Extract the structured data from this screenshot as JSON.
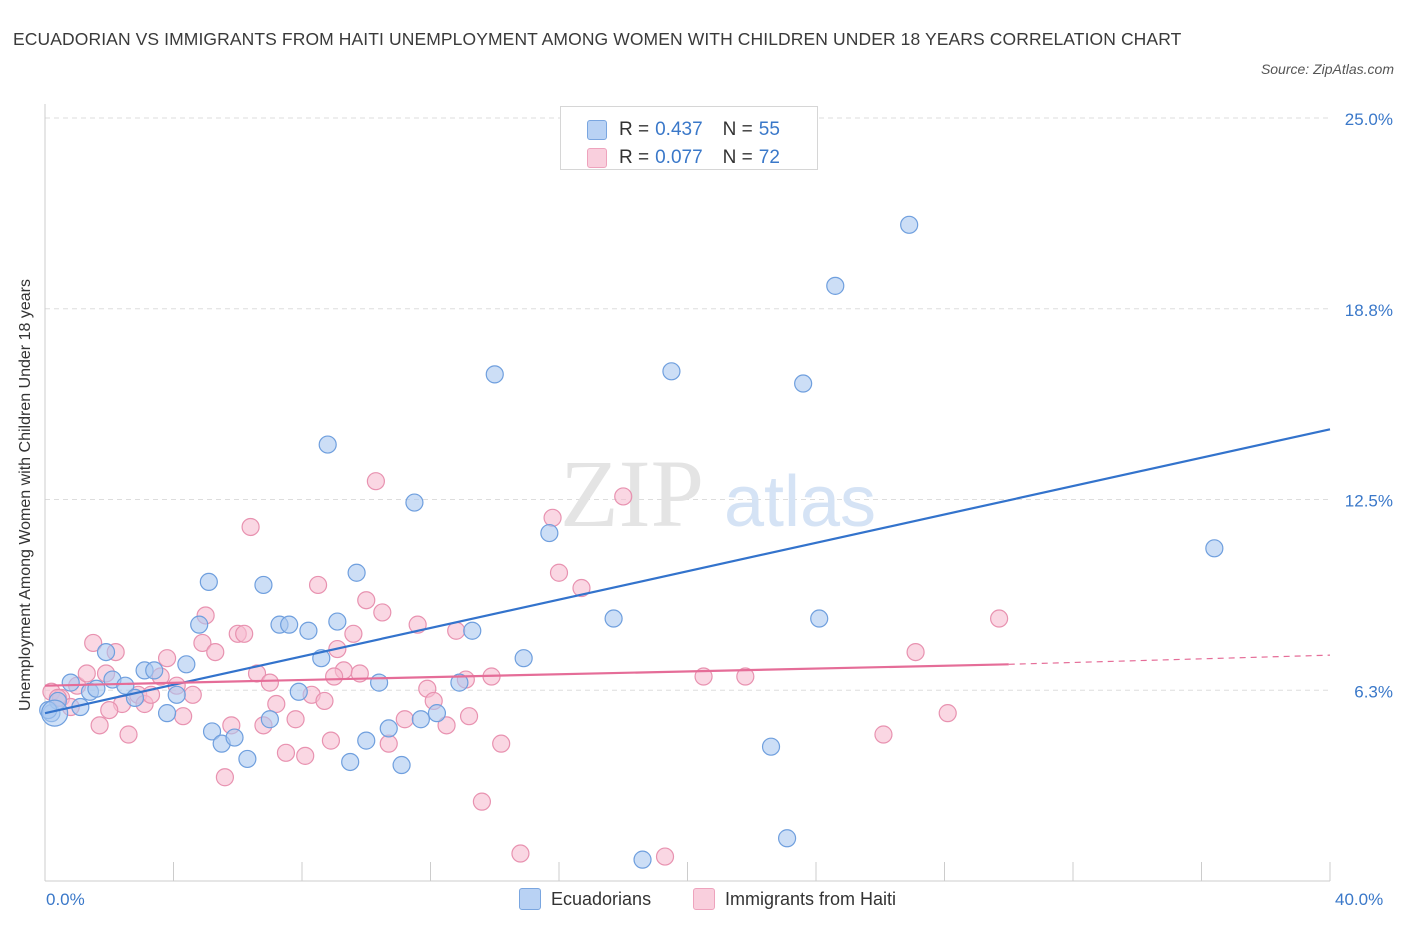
{
  "title": "ECUADORIAN VS IMMIGRANTS FROM HAITI UNEMPLOYMENT AMONG WOMEN WITH CHILDREN UNDER 18 YEARS CORRELATION CHART",
  "source": "Source: ZipAtlas.com",
  "watermark": {
    "zip": "ZIP",
    "atlas": "atlas"
  },
  "legend": {
    "rows": [
      {
        "r_label": "R =",
        "r_value": "0.437",
        "n_label": "N =",
        "n_value": "55"
      },
      {
        "r_label": "R =",
        "r_value": "0.077",
        "n_label": "N =",
        "n_value": "72"
      }
    ]
  },
  "colors": {
    "blue_fill": "#aac8f0",
    "blue_stroke": "#6f9fde",
    "blue_line": "#3373cc",
    "pink_fill": "#f6bcd0",
    "pink_stroke": "#e892b0",
    "pink_line": "#e56d98",
    "axis_label": "#3a78c9",
    "grid": "#dddddd"
  },
  "chart_data": {
    "type": "scatter",
    "title": "ECUADORIAN VS IMMIGRANTS FROM HAITI UNEMPLOYMENT AMONG WOMEN WITH CHILDREN UNDER 18 YEARS CORRELATION CHART",
    "xlabel": "",
    "ylabel": "Unemployment Among Women with Children Under 18 years",
    "xlim": [
      0,
      40
    ],
    "ylim": [
      0,
      25
    ],
    "x_tick_labels": [
      "0.0%",
      "40.0%"
    ],
    "y_tick_labels": [
      "6.3%",
      "12.5%",
      "18.8%",
      "25.0%"
    ],
    "y_ticks": [
      6.25,
      12.5,
      18.75,
      25.0
    ],
    "grid": true,
    "legend_position": "bottom",
    "series": [
      {
        "name": "Ecuadorians",
        "color": "#aac8f0",
        "trend": {
          "x": [
            0,
            40
          ],
          "y": [
            5.5,
            14.8
          ]
        },
        "points": [
          [
            0.2,
            5.5
          ],
          [
            0.4,
            5.9
          ],
          [
            0.8,
            6.5
          ],
          [
            1.1,
            5.7
          ],
          [
            1.4,
            6.2
          ],
          [
            1.6,
            6.3
          ],
          [
            1.9,
            7.5
          ],
          [
            2.1,
            6.6
          ],
          [
            2.5,
            6.4
          ],
          [
            2.8,
            6.0
          ],
          [
            3.1,
            6.9
          ],
          [
            3.4,
            6.9
          ],
          [
            3.8,
            5.5
          ],
          [
            4.1,
            6.1
          ],
          [
            4.4,
            7.1
          ],
          [
            4.8,
            8.4
          ],
          [
            5.1,
            9.8
          ],
          [
            5.2,
            4.9
          ],
          [
            5.5,
            4.5
          ],
          [
            5.9,
            4.7
          ],
          [
            6.3,
            4.0
          ],
          [
            6.8,
            9.7
          ],
          [
            7.0,
            5.3
          ],
          [
            7.3,
            8.4
          ],
          [
            7.6,
            8.4
          ],
          [
            7.9,
            6.2
          ],
          [
            8.2,
            8.2
          ],
          [
            8.6,
            7.3
          ],
          [
            8.8,
            14.3
          ],
          [
            9.1,
            8.5
          ],
          [
            9.5,
            3.9
          ],
          [
            9.7,
            10.1
          ],
          [
            10.0,
            4.6
          ],
          [
            10.4,
            6.5
          ],
          [
            10.7,
            5.0
          ],
          [
            11.1,
            3.8
          ],
          [
            11.5,
            12.4
          ],
          [
            11.7,
            5.3
          ],
          [
            12.2,
            5.5
          ],
          [
            12.9,
            6.5
          ],
          [
            13.3,
            8.2
          ],
          [
            14.0,
            16.6
          ],
          [
            14.9,
            7.3
          ],
          [
            15.7,
            11.4
          ],
          [
            17.7,
            8.6
          ],
          [
            18.6,
            0.7
          ],
          [
            19.5,
            16.7
          ],
          [
            22.6,
            4.4
          ],
          [
            23.1,
            1.4
          ],
          [
            23.6,
            16.3
          ],
          [
            24.1,
            8.6
          ],
          [
            24.6,
            19.5
          ],
          [
            26.9,
            21.5
          ],
          [
            36.4,
            10.9
          ],
          [
            0.1,
            5.6
          ]
        ]
      },
      {
        "name": "Immigrants from Haiti",
        "color": "#f6bcd0",
        "trend": {
          "x": [
            0,
            30
          ],
          "y": [
            6.4,
            7.1
          ]
        },
        "trend_dashed": {
          "x": [
            30,
            40
          ],
          "y": [
            7.1,
            7.4
          ]
        },
        "points": [
          [
            0.2,
            6.2
          ],
          [
            0.5,
            6.0
          ],
          [
            0.8,
            5.7
          ],
          [
            1.0,
            6.4
          ],
          [
            1.3,
            6.8
          ],
          [
            1.5,
            7.8
          ],
          [
            1.7,
            5.1
          ],
          [
            1.9,
            6.8
          ],
          [
            2.2,
            7.5
          ],
          [
            2.4,
            5.8
          ],
          [
            2.6,
            4.8
          ],
          [
            2.9,
            6.1
          ],
          [
            3.1,
            5.8
          ],
          [
            3.3,
            6.1
          ],
          [
            3.6,
            6.7
          ],
          [
            3.8,
            7.3
          ],
          [
            4.1,
            6.4
          ],
          [
            4.3,
            5.4
          ],
          [
            4.6,
            6.1
          ],
          [
            4.9,
            7.8
          ],
          [
            5.0,
            8.7
          ],
          [
            5.3,
            7.5
          ],
          [
            5.6,
            3.4
          ],
          [
            5.8,
            5.1
          ],
          [
            6.0,
            8.1
          ],
          [
            6.2,
            8.1
          ],
          [
            6.4,
            11.6
          ],
          [
            6.6,
            6.8
          ],
          [
            6.8,
            5.1
          ],
          [
            7.0,
            6.5
          ],
          [
            7.2,
            5.8
          ],
          [
            7.5,
            4.2
          ],
          [
            7.8,
            5.3
          ],
          [
            8.1,
            4.1
          ],
          [
            8.3,
            6.1
          ],
          [
            8.5,
            9.7
          ],
          [
            8.7,
            5.9
          ],
          [
            8.9,
            4.6
          ],
          [
            9.1,
            7.6
          ],
          [
            9.3,
            6.9
          ],
          [
            9.6,
            8.1
          ],
          [
            9.8,
            6.8
          ],
          [
            10.0,
            9.2
          ],
          [
            10.3,
            13.1
          ],
          [
            10.5,
            8.8
          ],
          [
            10.7,
            4.5
          ],
          [
            11.2,
            5.3
          ],
          [
            11.6,
            8.4
          ],
          [
            11.9,
            6.3
          ],
          [
            12.1,
            5.9
          ],
          [
            12.5,
            5.1
          ],
          [
            12.8,
            8.2
          ],
          [
            13.2,
            5.4
          ],
          [
            13.6,
            2.6
          ],
          [
            13.9,
            6.7
          ],
          [
            14.2,
            4.5
          ],
          [
            14.8,
            0.9
          ],
          [
            15.8,
            11.9
          ],
          [
            16.0,
            10.1
          ],
          [
            16.7,
            9.6
          ],
          [
            18.0,
            12.6
          ],
          [
            19.3,
            0.8
          ],
          [
            20.5,
            6.7
          ],
          [
            21.8,
            6.7
          ],
          [
            26.1,
            4.8
          ],
          [
            27.1,
            7.5
          ],
          [
            28.1,
            5.5
          ],
          [
            29.7,
            8.6
          ],
          [
            0.4,
            6.0
          ],
          [
            2.0,
            5.6
          ],
          [
            13.1,
            6.6
          ],
          [
            9.0,
            6.7
          ]
        ]
      }
    ]
  }
}
